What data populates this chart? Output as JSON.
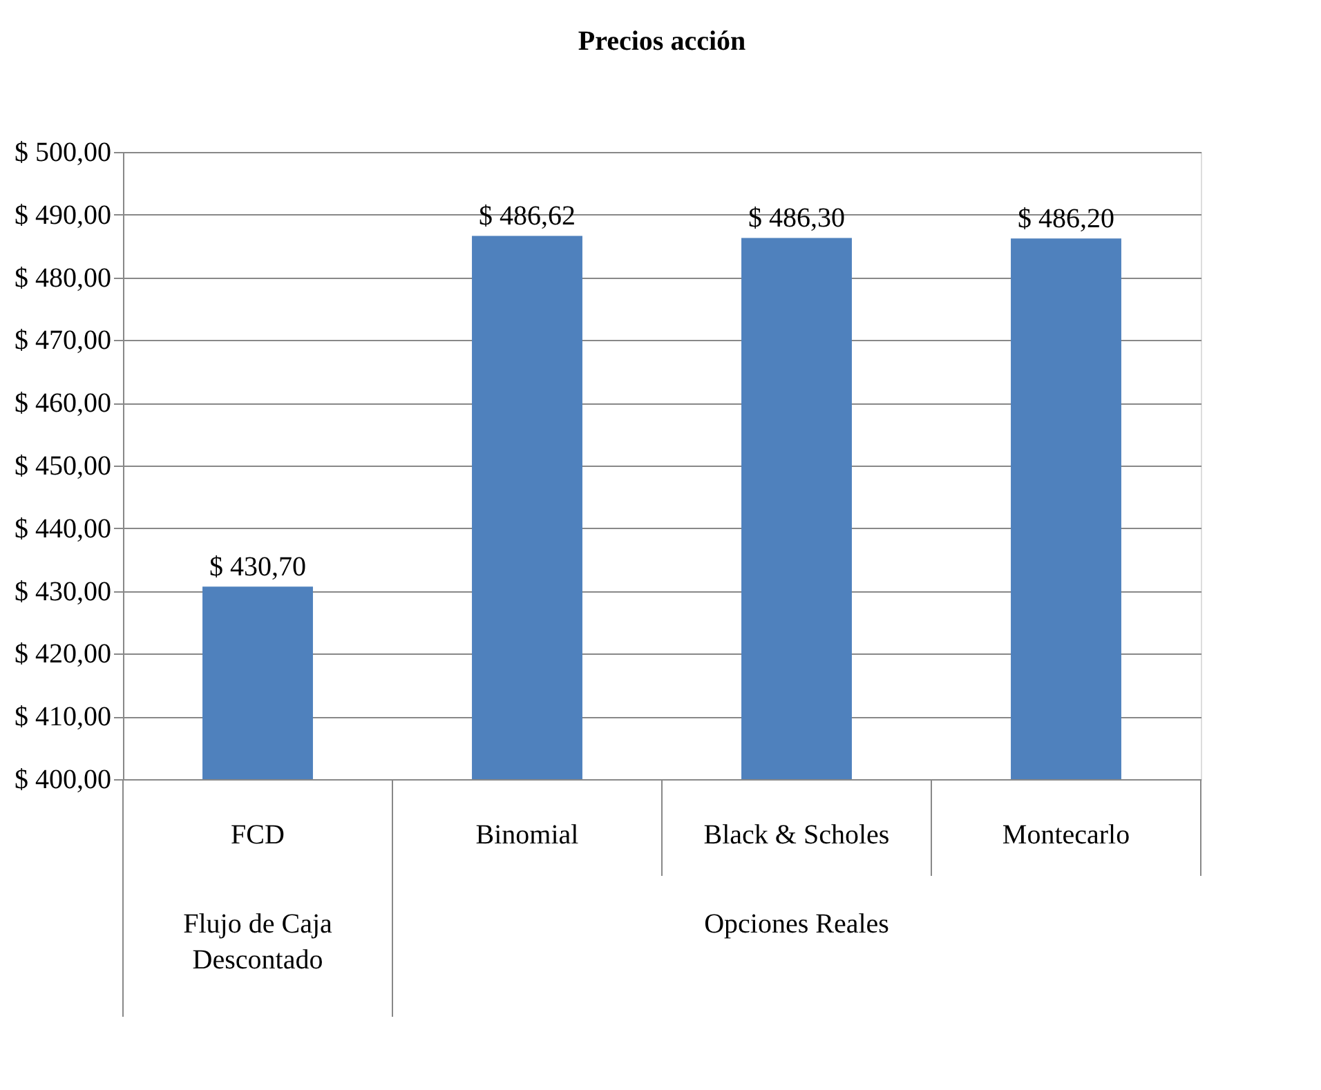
{
  "chart_data": {
    "type": "bar",
    "title": "Precios acción",
    "categories": [
      "FCD",
      "Binomial",
      "Black & Scholes",
      "Montecarlo"
    ],
    "values": [
      430.7,
      486.62,
      486.3,
      486.2
    ],
    "value_labels": [
      "$ 430,70",
      "$ 486,62",
      "$ 486,30",
      "$ 486,20"
    ],
    "color": "#4f81bd",
    "ylim": [
      400,
      500
    ],
    "yticks": [
      {
        "value": 400,
        "label": "$ 400,00"
      },
      {
        "value": 410,
        "label": "$ 410,00"
      },
      {
        "value": 420,
        "label": "$ 420,00"
      },
      {
        "value": 430,
        "label": "$ 430,00"
      },
      {
        "value": 440,
        "label": "$ 440,00"
      },
      {
        "value": 450,
        "label": "$ 450,00"
      },
      {
        "value": 460,
        "label": "$ 460,00"
      },
      {
        "value": 470,
        "label": "$ 470,00"
      },
      {
        "value": 480,
        "label": "$ 480,00"
      },
      {
        "value": 490,
        "label": "$ 490,00"
      },
      {
        "value": 500,
        "label": "$ 500,00"
      }
    ],
    "annotations": [
      "Flujo de Caja Descontado",
      "Opciones Reales"
    ],
    "grid": "y"
  }
}
